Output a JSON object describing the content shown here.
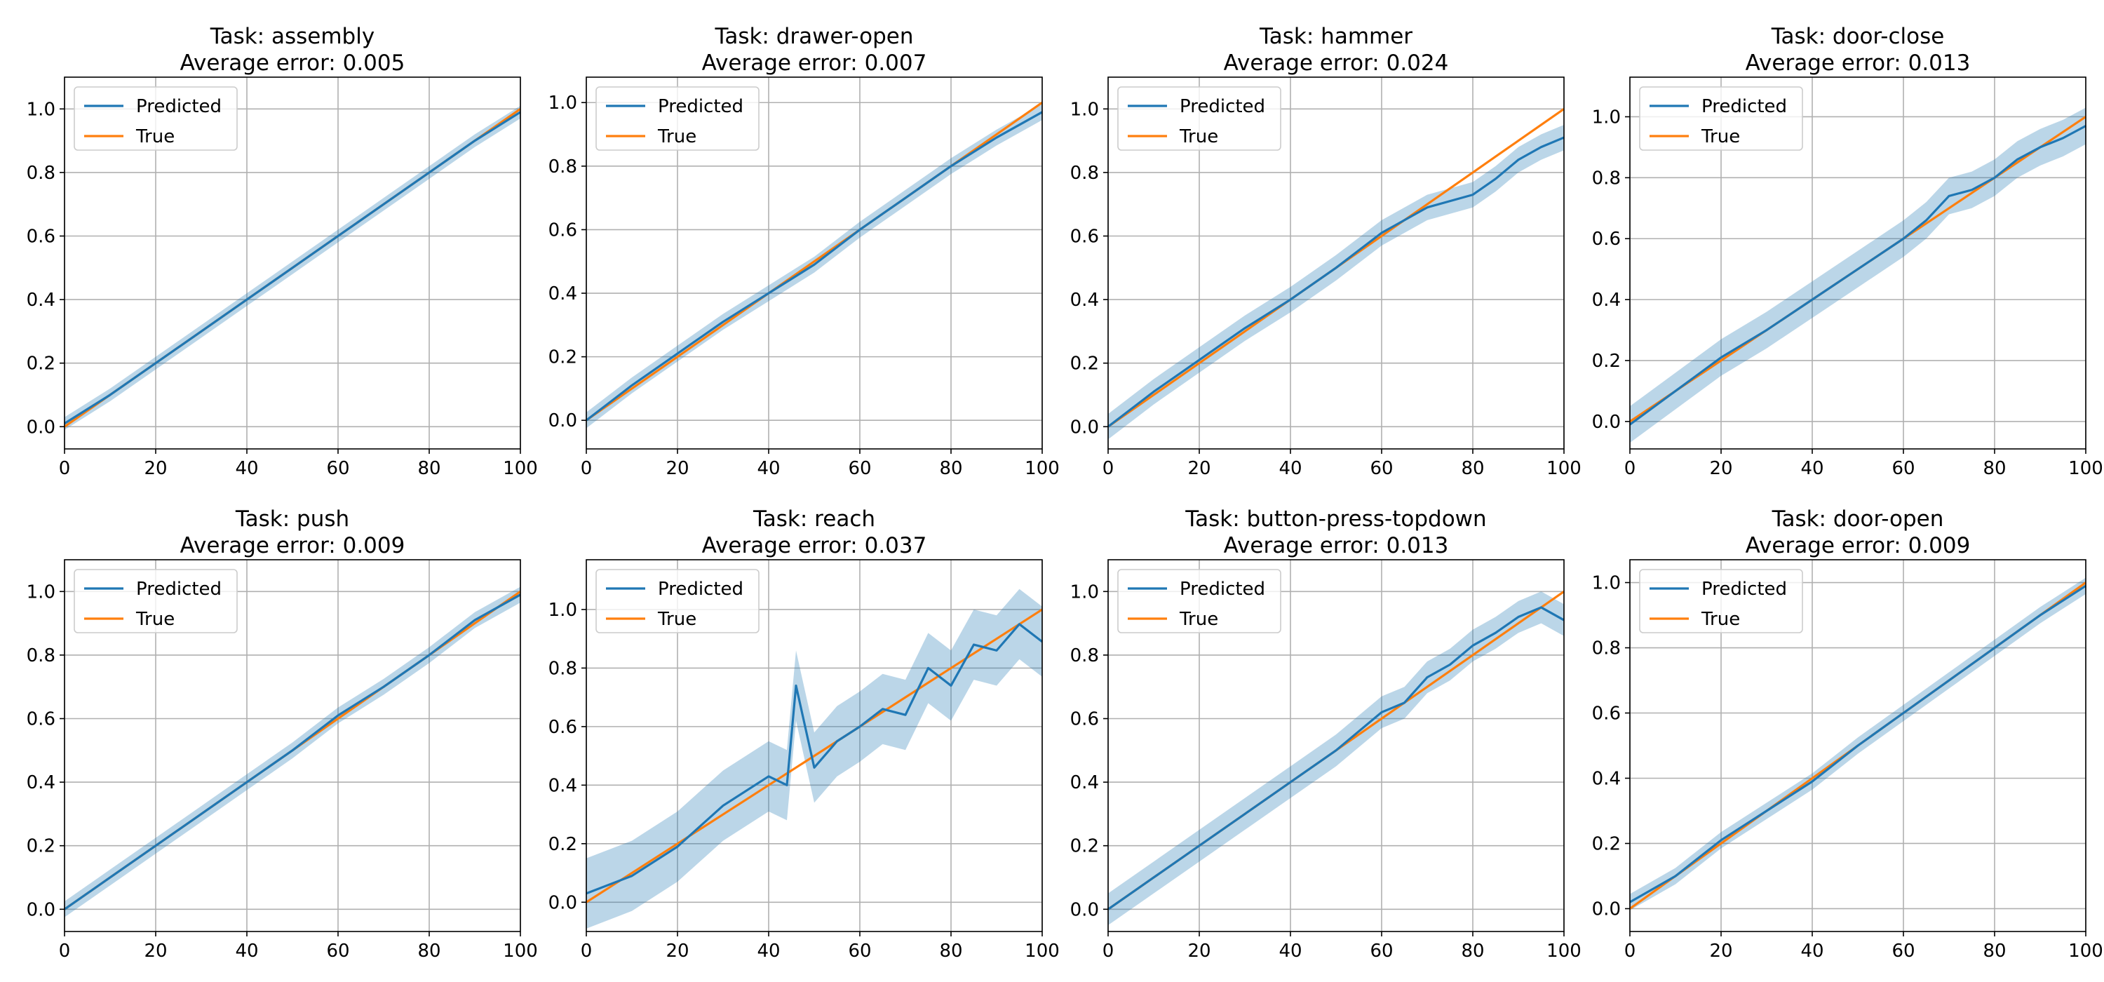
{
  "colors": {
    "predicted": "#1f77b4",
    "band": "#1f77b4",
    "true": "#ff7f0e",
    "grid": "#b0b0b0",
    "axes": "#000000"
  },
  "legend": {
    "predicted_label": "Predicted",
    "true_label": "True",
    "placement": "upper-left"
  },
  "chart_data": [
    {
      "type": "line",
      "title": "Task: assembly\nAverage error: 0.005",
      "xlim": [
        0,
        100
      ],
      "ylim": [
        -0.07,
        1.1
      ],
      "grid": true,
      "xticks": [
        0,
        20,
        40,
        60,
        80,
        100
      ],
      "yticks": [
        0.0,
        0.2,
        0.4,
        0.6,
        0.8,
        1.0
      ],
      "x": [
        0,
        10,
        20,
        30,
        40,
        50,
        60,
        70,
        80,
        90,
        100
      ],
      "series": [
        {
          "name": "Predicted",
          "values": [
            0.01,
            0.1,
            0.2,
            0.3,
            0.4,
            0.5,
            0.6,
            0.7,
            0.8,
            0.9,
            0.99
          ],
          "band_halfwidth": 0.02
        },
        {
          "name": "True",
          "values": [
            0.0,
            0.1,
            0.2,
            0.3,
            0.4,
            0.5,
            0.6,
            0.7,
            0.8,
            0.9,
            1.0
          ]
        }
      ]
    },
    {
      "type": "line",
      "title": "Task: drawer-open\nAverage error: 0.007",
      "xlim": [
        0,
        100
      ],
      "ylim": [
        -0.09,
        1.08
      ],
      "grid": true,
      "xticks": [
        0,
        20,
        40,
        60,
        80,
        100
      ],
      "yticks": [
        0.0,
        0.2,
        0.4,
        0.6,
        0.8,
        1.0
      ],
      "x": [
        0,
        10,
        20,
        30,
        40,
        50,
        60,
        70,
        80,
        90,
        100
      ],
      "series": [
        {
          "name": "Predicted",
          "values": [
            0.0,
            0.11,
            0.21,
            0.31,
            0.4,
            0.49,
            0.6,
            0.7,
            0.8,
            0.89,
            0.97
          ],
          "band_halfwidth": 0.025
        },
        {
          "name": "True",
          "values": [
            0.0,
            0.1,
            0.2,
            0.3,
            0.4,
            0.5,
            0.6,
            0.7,
            0.8,
            0.9,
            1.0
          ]
        }
      ]
    },
    {
      "type": "line",
      "title": "Task: hammer\nAverage error: 0.024",
      "xlim": [
        0,
        100
      ],
      "ylim": [
        -0.07,
        1.1
      ],
      "grid": true,
      "xticks": [
        0,
        20,
        40,
        60,
        80,
        100
      ],
      "yticks": [
        0.0,
        0.2,
        0.4,
        0.6,
        0.8,
        1.0
      ],
      "x": [
        0,
        10,
        20,
        30,
        40,
        50,
        60,
        70,
        80,
        85,
        90,
        95,
        100
      ],
      "series": [
        {
          "name": "Predicted",
          "values": [
            0.0,
            0.11,
            0.21,
            0.31,
            0.4,
            0.5,
            0.61,
            0.69,
            0.73,
            0.78,
            0.84,
            0.88,
            0.91
          ],
          "band_halfwidth": 0.04
        },
        {
          "name": "True",
          "values": [
            0.0,
            0.1,
            0.2,
            0.3,
            0.4,
            0.5,
            0.6,
            0.7,
            0.8,
            0.85,
            0.9,
            0.95,
            1.0
          ]
        }
      ]
    },
    {
      "type": "line",
      "title": "Task: door-close\nAverage error: 0.013",
      "xlim": [
        0,
        100
      ],
      "ylim": [
        -0.09,
        1.13
      ],
      "grid": true,
      "xticks": [
        0,
        20,
        40,
        60,
        80,
        100
      ],
      "yticks": [
        0.0,
        0.2,
        0.4,
        0.6,
        0.8,
        1.0
      ],
      "x": [
        0,
        10,
        20,
        30,
        40,
        50,
        60,
        65,
        70,
        75,
        80,
        85,
        90,
        95,
        100
      ],
      "series": [
        {
          "name": "Predicted",
          "values": [
            -0.01,
            0.1,
            0.21,
            0.3,
            0.4,
            0.5,
            0.6,
            0.66,
            0.74,
            0.76,
            0.8,
            0.86,
            0.9,
            0.93,
            0.97
          ],
          "band_halfwidth": 0.06
        },
        {
          "name": "True",
          "values": [
            0.0,
            0.1,
            0.2,
            0.3,
            0.4,
            0.5,
            0.6,
            0.65,
            0.7,
            0.75,
            0.8,
            0.85,
            0.9,
            0.95,
            1.0
          ]
        }
      ]
    },
    {
      "type": "line",
      "title": "Task: push\nAverage error: 0.009",
      "xlim": [
        0,
        100
      ],
      "ylim": [
        -0.07,
        1.1
      ],
      "grid": true,
      "xticks": [
        0,
        20,
        40,
        60,
        80,
        100
      ],
      "yticks": [
        0.0,
        0.2,
        0.4,
        0.6,
        0.8,
        1.0
      ],
      "x": [
        0,
        10,
        20,
        30,
        40,
        50,
        60,
        70,
        80,
        90,
        100
      ],
      "series": [
        {
          "name": "Predicted",
          "values": [
            0.0,
            0.1,
            0.2,
            0.3,
            0.4,
            0.5,
            0.61,
            0.7,
            0.8,
            0.91,
            0.99
          ],
          "band_halfwidth": 0.025
        },
        {
          "name": "True",
          "values": [
            0.0,
            0.1,
            0.2,
            0.3,
            0.4,
            0.5,
            0.6,
            0.7,
            0.8,
            0.9,
            1.0
          ]
        }
      ]
    },
    {
      "type": "line",
      "title": "Task: reach\nAverage error: 0.037",
      "xlim": [
        0,
        100
      ],
      "ylim": [
        -0.1,
        1.17
      ],
      "grid": true,
      "xticks": [
        0,
        20,
        40,
        60,
        80,
        100
      ],
      "yticks": [
        0.0,
        0.2,
        0.4,
        0.6,
        0.8,
        1.0
      ],
      "x": [
        0,
        10,
        20,
        30,
        40,
        44,
        46,
        50,
        55,
        60,
        65,
        70,
        75,
        80,
        85,
        90,
        95,
        100
      ],
      "series": [
        {
          "name": "Predicted",
          "values": [
            0.03,
            0.09,
            0.19,
            0.33,
            0.43,
            0.4,
            0.74,
            0.46,
            0.55,
            0.6,
            0.66,
            0.64,
            0.8,
            0.74,
            0.88,
            0.86,
            0.95,
            0.89
          ],
          "band_halfwidth": 0.12
        },
        {
          "name": "True",
          "values": [
            0.0,
            0.1,
            0.2,
            0.3,
            0.4,
            0.44,
            0.46,
            0.5,
            0.55,
            0.6,
            0.65,
            0.7,
            0.75,
            0.8,
            0.85,
            0.9,
            0.95,
            1.0
          ]
        }
      ]
    },
    {
      "type": "line",
      "title": "Task: button-press-topdown\nAverage error: 0.013",
      "xlim": [
        0,
        100
      ],
      "ylim": [
        -0.07,
        1.1
      ],
      "grid": true,
      "xticks": [
        0,
        20,
        40,
        60,
        80,
        100
      ],
      "yticks": [
        0.0,
        0.2,
        0.4,
        0.6,
        0.8,
        1.0
      ],
      "x": [
        0,
        10,
        20,
        30,
        40,
        50,
        60,
        65,
        70,
        75,
        80,
        85,
        90,
        95,
        100
      ],
      "series": [
        {
          "name": "Predicted",
          "values": [
            0.0,
            0.1,
            0.2,
            0.3,
            0.4,
            0.5,
            0.62,
            0.65,
            0.73,
            0.77,
            0.83,
            0.87,
            0.92,
            0.95,
            0.91
          ],
          "band_halfwidth": 0.05
        },
        {
          "name": "True",
          "values": [
            0.0,
            0.1,
            0.2,
            0.3,
            0.4,
            0.5,
            0.6,
            0.65,
            0.7,
            0.75,
            0.8,
            0.85,
            0.9,
            0.95,
            1.0
          ]
        }
      ]
    },
    {
      "type": "line",
      "title": "Task: door-open\nAverage error: 0.009",
      "xlim": [
        0,
        100
      ],
      "ylim": [
        -0.07,
        1.07
      ],
      "grid": true,
      "xticks": [
        0,
        20,
        40,
        60,
        80,
        100
      ],
      "yticks": [
        0.0,
        0.2,
        0.4,
        0.6,
        0.8,
        1.0
      ],
      "x": [
        0,
        10,
        20,
        30,
        40,
        50,
        60,
        70,
        80,
        90,
        100
      ],
      "series": [
        {
          "name": "Predicted",
          "values": [
            0.02,
            0.1,
            0.21,
            0.3,
            0.39,
            0.5,
            0.6,
            0.7,
            0.8,
            0.9,
            0.99
          ],
          "band_halfwidth": 0.025
        },
        {
          "name": "True",
          "values": [
            0.0,
            0.1,
            0.2,
            0.3,
            0.4,
            0.5,
            0.6,
            0.7,
            0.8,
            0.9,
            1.0
          ]
        }
      ]
    }
  ]
}
